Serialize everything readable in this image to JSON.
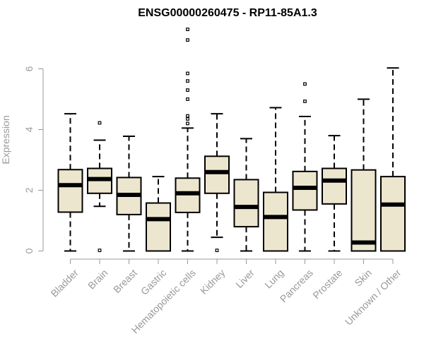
{
  "chart_data": {
    "type": "box",
    "title": "ENSG00000260475 - RP11-85A1.3",
    "xlabel": "",
    "ylabel": "Expression",
    "ylim": [
      0,
      7.4
    ],
    "yticks": [
      0,
      2,
      4,
      6
    ],
    "box_fill": "#ede6cf",
    "categories": [
      "Bladder",
      "Brain",
      "Breast",
      "Gastric",
      "Hematopoietic cells",
      "Kidney",
      "Liver",
      "Lung",
      "Pancreas",
      "Prostate",
      "Skin",
      "Unknown / Other"
    ],
    "series": [
      {
        "category": "Bladder",
        "whisker_low": 0,
        "q1": 1.28,
        "median": 2.17,
        "q3": 2.68,
        "whisker_high": 4.52,
        "outliers": []
      },
      {
        "category": "Brain",
        "whisker_low": 1.47,
        "q1": 1.9,
        "median": 2.37,
        "q3": 2.72,
        "whisker_high": 3.65,
        "outliers": [
          4.22,
          0.02
        ]
      },
      {
        "category": "Breast",
        "whisker_low": 0,
        "q1": 1.2,
        "median": 1.85,
        "q3": 2.42,
        "whisker_high": 3.78,
        "outliers": []
      },
      {
        "category": "Gastric",
        "whisker_low": 0,
        "q1": 0,
        "median": 1.05,
        "q3": 1.58,
        "whisker_high": 2.45,
        "outliers": []
      },
      {
        "category": "Hematopoietic cells",
        "whisker_low": 0,
        "q1": 1.27,
        "median": 1.9,
        "q3": 2.4,
        "whisker_high": 4.05,
        "outliers": [
          7.3,
          6.95,
          5.85,
          5.6,
          5.3,
          5.0,
          4.45,
          4.35,
          4.2
        ]
      },
      {
        "category": "Kidney",
        "whisker_low": 0.45,
        "q1": 1.9,
        "median": 2.6,
        "q3": 3.12,
        "whisker_high": 4.52,
        "outliers": [
          0.02
        ]
      },
      {
        "category": "Liver",
        "whisker_low": 0,
        "q1": 0.8,
        "median": 1.45,
        "q3": 2.35,
        "whisker_high": 3.7,
        "outliers": []
      },
      {
        "category": "Lung",
        "whisker_low": 0,
        "q1": 0,
        "median": 1.12,
        "q3": 1.93,
        "whisker_high": 4.72,
        "outliers": []
      },
      {
        "category": "Pancreas",
        "whisker_low": 0,
        "q1": 1.35,
        "median": 2.08,
        "q3": 2.62,
        "whisker_high": 4.43,
        "outliers": [
          5.5,
          4.93
        ]
      },
      {
        "category": "Prostate",
        "whisker_low": 0,
        "q1": 1.55,
        "median": 2.32,
        "q3": 2.72,
        "whisker_high": 3.8,
        "outliers": []
      },
      {
        "category": "Skin",
        "whisker_low": 0,
        "q1": 0,
        "median": 0.28,
        "q3": 2.67,
        "whisker_high": 5.0,
        "outliers": []
      },
      {
        "category": "Unknown / Other",
        "whisker_low": 0,
        "q1": 0,
        "median": 1.53,
        "q3": 2.45,
        "whisker_high": 6.03,
        "outliers": []
      }
    ]
  }
}
